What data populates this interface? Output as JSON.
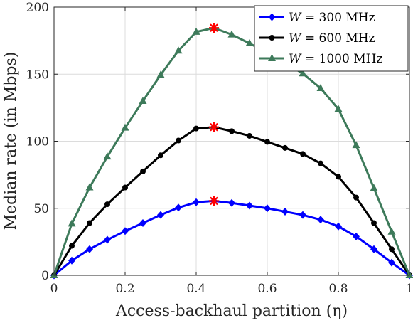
{
  "chart_data": {
    "type": "line",
    "xlabel": "Access-backhaul partition (η)",
    "ylabel": "Median rate (in Mbps)",
    "xlim": [
      0,
      1
    ],
    "ylim": [
      0,
      200
    ],
    "x_ticks": [
      0,
      0.2,
      0.4,
      0.6,
      0.8,
      1
    ],
    "x_tick_labels": [
      "0",
      "0.2",
      "0.4",
      "0.6",
      "0.8",
      "1"
    ],
    "y_ticks": [
      0,
      50,
      100,
      150,
      200
    ],
    "y_tick_labels": [
      "0",
      "50",
      "100",
      "150",
      "200"
    ],
    "grid": true,
    "legend_position": "top-right",
    "x": [
      0,
      0.05,
      0.1,
      0.15,
      0.2,
      0.25,
      0.3,
      0.35,
      0.4,
      0.45,
      0.5,
      0.55,
      0.6,
      0.65,
      0.7,
      0.75,
      0.8,
      0.85,
      0.9,
      0.95,
      1
    ],
    "series": [
      {
        "name": "W = 300 MHz",
        "legend_var": "W",
        "legend_rest": " = 300 MHz",
        "color": "#0000ff",
        "marker": "diamond",
        "values": [
          0,
          11,
          19.5,
          26.5,
          33,
          39,
          45,
          50.5,
          54.5,
          55.5,
          54,
          52,
          50,
          47.5,
          45,
          41.5,
          36.5,
          29,
          19.5,
          9.5,
          0
        ]
      },
      {
        "name": "W = 600 MHz",
        "legend_var": "W",
        "legend_rest": " = 600 MHz",
        "color": "#000000",
        "marker": "circle",
        "values": [
          0,
          22,
          39,
          53,
          65.5,
          77.5,
          89.5,
          100.5,
          109.5,
          110.5,
          107.5,
          104,
          99.5,
          95,
          90.5,
          83.5,
          73.5,
          58,
          39,
          19.5,
          0
        ]
      },
      {
        "name": "W = 1000 MHz",
        "legend_var": "W",
        "legend_rest": " = 1000 MHz",
        "color": "#3d7a5a",
        "marker": "triangle",
        "values": [
          0,
          38.5,
          65.5,
          88.5,
          110,
          130,
          149.5,
          167.5,
          181.5,
          184.5,
          179.5,
          173,
          166,
          158.5,
          150.5,
          139.5,
          124,
          97,
          65,
          32.5,
          0
        ]
      }
    ],
    "optimum_markers": [
      {
        "x": 0.45,
        "y": 55.5,
        "color": "#ff0000"
      },
      {
        "x": 0.45,
        "y": 110.5,
        "color": "#ff0000"
      },
      {
        "x": 0.45,
        "y": 184.5,
        "color": "#ff0000"
      }
    ]
  }
}
